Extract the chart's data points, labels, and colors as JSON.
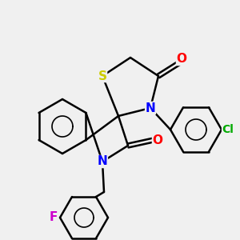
{
  "bg_color": "#f0f0f0",
  "bond_color": "#000000",
  "bond_width": 1.8,
  "atom_colors": {
    "N": "#0000ff",
    "O": "#ff0000",
    "S": "#cccc00",
    "F": "#cc00cc",
    "Cl": "#00aa00",
    "C": "#000000"
  },
  "font_size": 11
}
